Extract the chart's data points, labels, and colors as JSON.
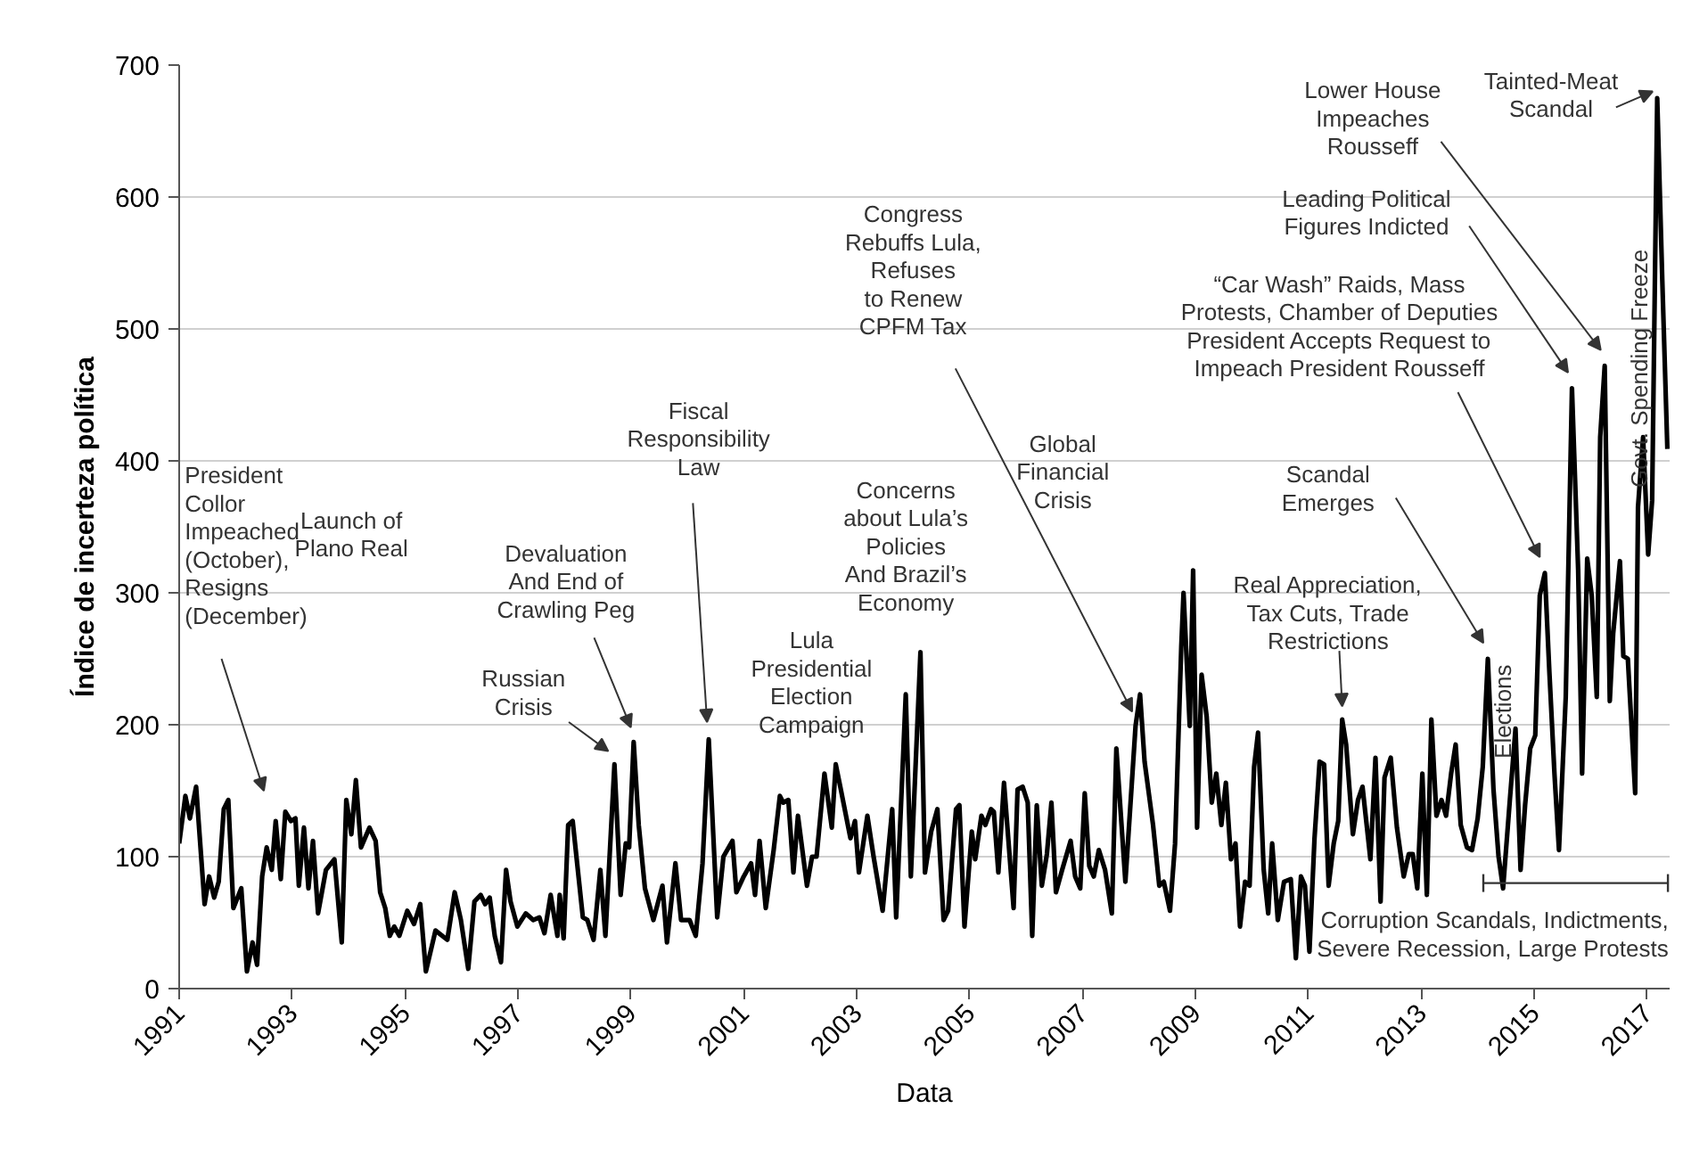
{
  "chart_data": {
    "type": "line",
    "xlabel": "Data",
    "ylabel": "Índice de incerteza política",
    "xlim": [
      1991,
      2017.4
    ],
    "xticks": [
      1991,
      1993,
      1995,
      1997,
      1999,
      2001,
      2003,
      2005,
      2007,
      2009,
      2011,
      2013,
      2015,
      2017
    ],
    "ylim": [
      0,
      700
    ],
    "yticks": [
      0,
      100,
      200,
      300,
      400,
      500,
      600,
      700
    ],
    "grid": "y",
    "marker": "none",
    "line_style": "solid",
    "x": [
      1991.0,
      1991.11,
      1991.19,
      1991.3,
      1991.45,
      1991.53,
      1991.62,
      1991.7,
      1991.79,
      1991.87,
      1991.96,
      1992.1,
      1992.2,
      1992.3,
      1992.38,
      1992.47,
      1992.55,
      1992.64,
      1992.71,
      1992.8,
      1992.88,
      1992.98,
      1993.06,
      1993.12,
      1993.21,
      1993.29,
      1993.37,
      1993.46,
      1993.6,
      1993.75,
      1993.88,
      1993.96,
      1994.05,
      1994.13,
      1994.22,
      1994.37,
      1994.48,
      1994.56,
      1994.65,
      1994.73,
      1994.81,
      1994.9,
      1995.04,
      1995.16,
      1995.27,
      1995.37,
      1995.54,
      1995.75,
      1995.88,
      1995.99,
      1996.12,
      1996.23,
      1996.34,
      1996.42,
      1996.5,
      1996.59,
      1996.7,
      1996.79,
      1996.87,
      1996.99,
      1997.14,
      1997.27,
      1997.38,
      1997.47,
      1997.58,
      1997.7,
      1997.74,
      1997.81,
      1997.89,
      1997.97,
      1998.15,
      1998.23,
      1998.34,
      1998.46,
      1998.55,
      1998.71,
      1998.82,
      1998.91,
      1998.97,
      1999.05,
      1999.14,
      1999.25,
      1999.4,
      1999.56,
      1999.64,
      1999.79,
      1999.89,
      2000.04,
      2000.15,
      2000.27,
      2000.38,
      2000.53,
      2000.64,
      2000.8,
      2000.87,
      2001.0,
      2001.13,
      2001.2,
      2001.28,
      2001.39,
      2001.53,
      2001.64,
      2001.7,
      2001.79,
      2001.88,
      2001.96,
      2002.12,
      2002.21,
      2002.29,
      2002.43,
      2002.56,
      2002.63,
      2002.71,
      2002.89,
      2002.97,
      2003.04,
      2003.19,
      2003.3,
      2003.46,
      2003.63,
      2003.7,
      2003.87,
      2003.96,
      2004.13,
      2004.21,
      2004.32,
      2004.43,
      2004.54,
      2004.62,
      2004.76,
      2004.82,
      2004.91,
      2005.04,
      2005.1,
      2005.21,
      2005.28,
      2005.38,
      2005.43,
      2005.51,
      2005.61,
      2005.78,
      2005.85,
      2005.94,
      2006.03,
      2006.11,
      2006.19,
      2006.28,
      2006.37,
      2006.45,
      2006.53,
      2006.64,
      2006.79,
      2006.87,
      2006.96,
      2007.04,
      2007.12,
      2007.2,
      2007.29,
      2007.4,
      2007.52,
      2007.6,
      2007.76,
      2007.94,
      2008.02,
      2008.1,
      2008.25,
      2008.36,
      2008.44,
      2008.55,
      2008.64,
      2008.75,
      2008.79,
      2008.9,
      2008.96,
      2009.03,
      2009.11,
      2009.2,
      2009.29,
      2009.37,
      2009.46,
      2009.54,
      2009.63,
      2009.71,
      2009.79,
      2009.88,
      2009.96,
      2010.04,
      2010.11,
      2010.21,
      2010.29,
      2010.36,
      2010.46,
      2010.57,
      2010.69,
      2010.78,
      2010.87,
      2010.94,
      2011.02,
      2011.11,
      2011.2,
      2011.28,
      2011.36,
      2011.45,
      2011.53,
      2011.6,
      2011.67,
      2011.79,
      2011.88,
      2011.96,
      2012.1,
      2012.19,
      2012.28,
      2012.35,
      2012.46,
      2012.57,
      2012.69,
      2012.78,
      2012.85,
      2012.93,
      2013.02,
      2013.1,
      2013.18,
      2013.27,
      2013.36,
      2013.44,
      2013.53,
      2013.61,
      2013.7,
      2013.81,
      2013.9,
      2014.0,
      2014.09,
      2014.18,
      2014.28,
      2014.37,
      2014.45,
      2014.57,
      2014.67,
      2014.76,
      2014.84,
      2014.93,
      2015.02,
      2015.1,
      2015.19,
      2015.27,
      2015.36,
      2015.44,
      2015.56,
      2015.67,
      2015.78,
      2015.85,
      2015.94,
      2016.02,
      2016.11,
      2016.17,
      2016.25,
      2016.34,
      2016.4,
      2016.52,
      2016.58,
      2016.66,
      2016.79,
      2016.84,
      2016.93,
      2017.02,
      2017.09,
      2017.18,
      2017.27,
      2017.36
    ],
    "series": [
      {
        "color": "#000000",
        "values": [
          110,
          146,
          129,
          153,
          64,
          85,
          69,
          81,
          136,
          143,
          61,
          76,
          13,
          35,
          18,
          85,
          107,
          90,
          127,
          83,
          134,
          127,
          129,
          78,
          122,
          76,
          112,
          57,
          90,
          98,
          35,
          143,
          117,
          158,
          107,
          122,
          112,
          73,
          61,
          40,
          47,
          40,
          59,
          49,
          64,
          13,
          44,
          37,
          73,
          52,
          15,
          66,
          71,
          64,
          69,
          40,
          20,
          90,
          66,
          47,
          57,
          52,
          54,
          42,
          71,
          40,
          71,
          38,
          124,
          127,
          54,
          52,
          37,
          90,
          40,
          170,
          71,
          110,
          107,
          187,
          124,
          76,
          52,
          78,
          35,
          95,
          52,
          52,
          40,
          95,
          189,
          54,
          100,
          112,
          73,
          85,
          95,
          71,
          112,
          61,
          105,
          146,
          141,
          143,
          88,
          131,
          78,
          100,
          100,
          163,
          122,
          170,
          153,
          114,
          127,
          88,
          131,
          100,
          59,
          136,
          54,
          223,
          85,
          255,
          88,
          119,
          136,
          52,
          59,
          136,
          139,
          47,
          119,
          98,
          131,
          124,
          136,
          134,
          88,
          156,
          61,
          151,
          153,
          141,
          40,
          139,
          78,
          102,
          141,
          73,
          90,
          112,
          85,
          76,
          148,
          93,
          85,
          105,
          90,
          57,
          182,
          81,
          199,
          223,
          172,
          124,
          78,
          81,
          59,
          110,
          259,
          300,
          199,
          317,
          122,
          238,
          206,
          141,
          163,
          124,
          156,
          98,
          110,
          47,
          81,
          78,
          168,
          194,
          90,
          57,
          110,
          52,
          81,
          83,
          23,
          85,
          78,
          28,
          114,
          172,
          170,
          78,
          110,
          127,
          204,
          185,
          117,
          143,
          153,
          98,
          175,
          66,
          160,
          175,
          122,
          85,
          102,
          102,
          76,
          163,
          71,
          204,
          131,
          143,
          131,
          163,
          185,
          124,
          107,
          105,
          129,
          168,
          250,
          151,
          100,
          76,
          143,
          197,
          90,
          139,
          182,
          192,
          298,
          315,
          240,
          163,
          105,
          221,
          455,
          317,
          163,
          326,
          298,
          221,
          418,
          472,
          218,
          269,
          324,
          252,
          250,
          148,
          365,
          418,
          329,
          370,
          675,
          537,
          409
        ]
      }
    ],
    "annotations": [
      "President\nCollor\nImpeached\n(October),\nResigns\n(December)",
      "Launch of\nPlano Real",
      "Russian\nCrisis",
      "Devaluation\nAnd End of\nCrawling Peg",
      "Fiscal\nResponsibility\nLaw",
      "Lula\nPresidential\nElection\nCampaign",
      "Concerns\nabout Lula’s\nPolicies\nAnd Brazil’s\nEconomy",
      {
        "text": "Congress\nRebuffs Lula,\nRefuses\nto Renew\nCPFM Tax",
        "x": 2007.88,
        "y": 210
      },
      "Global\nFinancial\nCrisis",
      "Real Appreciation,\nTax Cuts, Trade\nRestrictions",
      "Scandal\nEmerges",
      "“Car Wash” Raids, Mass\nProtests, Chamber of Deputies\nPresident Accepts Request to\nImpeach President Rousseff",
      "Leading Political\nFigures Indicted",
      "Lower House\nImpeaches\nRousseff",
      {
        "text": "Tainted-Meat\nScandal",
        "x": 2017.1,
        "y": 680
      },
      "Elections",
      "Govt. Spending Freeze",
      "Corruption Scandals, Indictments,\nSevere Recession, Large Protests"
    ]
  }
}
